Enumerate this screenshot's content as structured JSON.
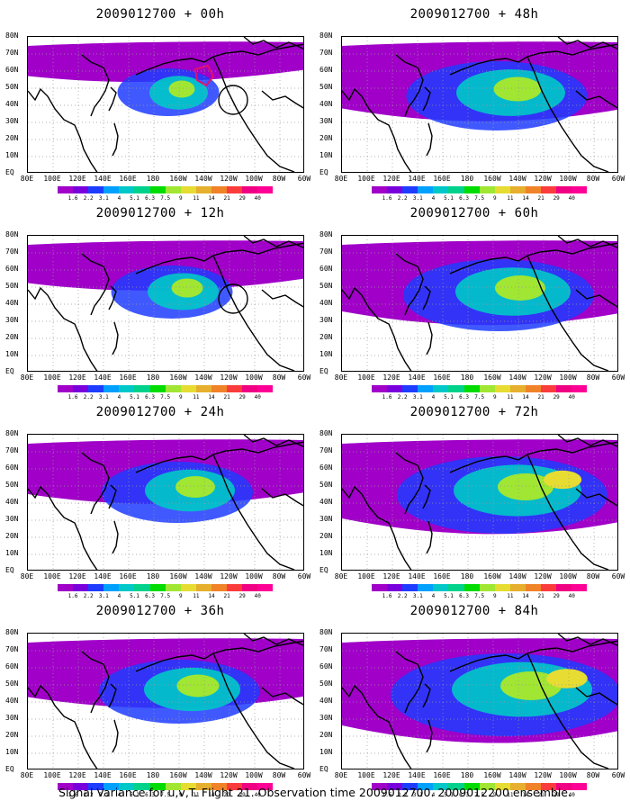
{
  "caption": "Signal Variance for u,v,T. Flight 21. Observation time 2009012700. 2009012200 ensemble.",
  "lat_labels": [
    "80N",
    "70N",
    "60N",
    "50N",
    "40N",
    "30N",
    "20N",
    "10N",
    "EQ"
  ],
  "lon_labels": [
    "80E",
    "100E",
    "120E",
    "140E",
    "160E",
    "180",
    "160W",
    "140W",
    "120W",
    "100W",
    "80W",
    "60W"
  ],
  "colorbar": {
    "labels": [
      "1.6",
      "2.2",
      "3.1",
      "4",
      "5.1",
      "6.3",
      "7.5",
      "9",
      "11",
      "14",
      "21",
      "29",
      "40"
    ],
    "colors": [
      "#a000c8",
      "#7800dc",
      "#1e3cff",
      "#00a0ff",
      "#00c8c8",
      "#00d28c",
      "#00dc00",
      "#a0e632",
      "#e6dc32",
      "#e6af2d",
      "#f08228",
      "#fa3c3c",
      "#f00082"
    ]
  },
  "panels": [
    {
      "id": "p00",
      "title": "2009012700 + 00h",
      "fill": 0.15,
      "circle": true,
      "red_contour": true
    },
    {
      "id": "p48",
      "title": "2009012700 + 48h",
      "fill": 0.55,
      "circle": false,
      "red_contour": false
    },
    {
      "id": "p12",
      "title": "2009012700 + 12h",
      "fill": 0.25,
      "circle": true,
      "red_contour": false
    },
    {
      "id": "p60",
      "title": "2009012700 + 60h",
      "fill": 0.6,
      "circle": false,
      "red_contour": false
    },
    {
      "id": "p24",
      "title": "2009012700 + 24h",
      "fill": 0.4,
      "circle": false,
      "red_contour": false
    },
    {
      "id": "p72",
      "title": "2009012700 + 72h",
      "fill": 0.7,
      "circle": false,
      "red_contour": false
    },
    {
      "id": "p36",
      "title": "2009012700 + 36h",
      "fill": 0.45,
      "circle": false,
      "red_contour": false
    },
    {
      "id": "p84",
      "title": "2009012700 + 84h",
      "fill": 0.8,
      "circle": false,
      "red_contour": false
    }
  ]
}
